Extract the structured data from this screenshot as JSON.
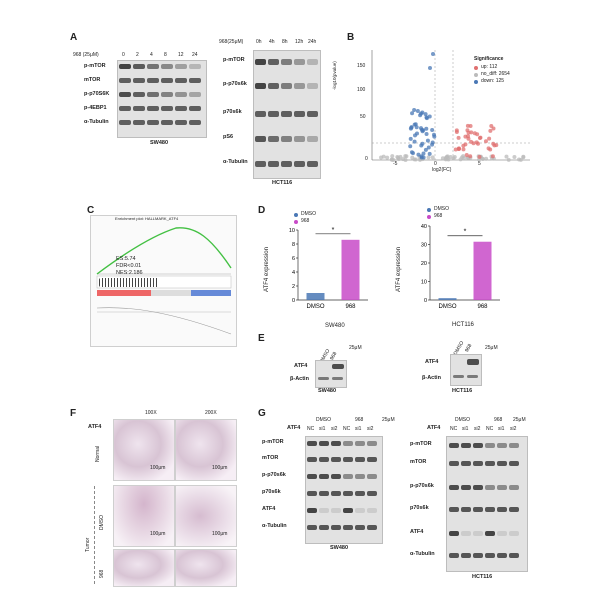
{
  "panels": {
    "A": "A",
    "B": "B",
    "C": "C",
    "D": "D",
    "E": "E",
    "F": "F",
    "G": "G"
  },
  "panelA": {
    "sw_treatment": "968 (25μM)",
    "sw_times": [
      "0",
      "2",
      "4",
      "8",
      "12",
      "24"
    ],
    "sw_rows": [
      "p-mTOR",
      "mTOR",
      "p-p70S6K",
      "p-4EBP1",
      "α-Tubulin"
    ],
    "sw_cell": "SW480",
    "hct_treatment": "968(25μM)",
    "hct_times": [
      "0h",
      "4h",
      "8h",
      "12h",
      "24h"
    ],
    "hct_rows": [
      "p-mTOR",
      "p-p70s6k",
      "p70s6k",
      "pS6",
      "α-Tubulin"
    ],
    "hct_cell": "HCT116"
  },
  "panelB": {
    "title": "Significance",
    "legend": [
      "up: 112",
      "no_diff: 2654",
      "down: 125"
    ],
    "colors": [
      "#e07070",
      "#bbbbbb",
      "#4a78b5"
    ],
    "xlabel": "log2(FC)",
    "ylabel": "-log10(pvalue)",
    "yticks": [
      "150",
      "100",
      "50",
      "0"
    ],
    "xticks": [
      "-5",
      "0",
      "5"
    ]
  },
  "panelC": {
    "title": "Enrichment plot: HALLMARK_ATF4",
    "es": "ES:5.74",
    "fdr": "FDR<0.01",
    "nes": "NES:2.186"
  },
  "panelD": {
    "legend": [
      "DMSO",
      "968"
    ],
    "ylabel": "ATF4 expression",
    "chart1": {
      "cell": "SW480",
      "categories": [
        "DMSO",
        "968"
      ],
      "yticks": [
        "10",
        "8",
        "6",
        "4",
        "2",
        "0"
      ],
      "sig": "*"
    },
    "chart2": {
      "cell": "HCT116",
      "categories": [
        "DMSO",
        "968"
      ],
      "yticks": [
        "40",
        "30",
        "20",
        "10",
        "0"
      ],
      "sig": "*"
    }
  },
  "panelE": {
    "row1": "ATF4",
    "row2": "β-Actin",
    "conc": "25μM",
    "lanes": [
      "DMSO",
      "968"
    ],
    "cell1": "SW480",
    "cell2": "HCT116"
  },
  "panelF": {
    "row_label": "ATF4",
    "mag1": "100X",
    "mag2": "200X",
    "normal": "Normal",
    "tumor": "Tumor",
    "dmso": "DMSO",
    "drug": "968",
    "scale": "100μm"
  },
  "panelG": {
    "conc": "25μM",
    "atf4": "ATF4",
    "groups": [
      "DMSO",
      "968"
    ],
    "sirna": [
      "NC",
      "si1",
      "si2",
      "NC",
      "si1",
      "si2"
    ],
    "rows_sw": [
      "p-mTOR",
      "mTOR",
      "p-p70s6k",
      "p70s6k",
      "ATF4",
      "α-Tubulin"
    ],
    "rows_hct": [
      "p-mTOR",
      "mTOR",
      "p-p70s6k",
      "p70s6k",
      "ATF4",
      "α-Tubulin"
    ],
    "cell1": "SW480",
    "cell2": "HCT116"
  },
  "chart_data": [
    {
      "type": "bar",
      "title": "",
      "ylabel": "ATF4 expression",
      "xlabel": "SW480",
      "categories": [
        "DMSO",
        "968"
      ],
      "values": [
        1.0,
        8.6
      ],
      "ylim": [
        0,
        10
      ],
      "colors": [
        "#4a78b5",
        "#c84bc8"
      ]
    },
    {
      "type": "bar",
      "title": "",
      "ylabel": "ATF4 expression",
      "xlabel": "HCT116",
      "categories": [
        "DMSO",
        "968"
      ],
      "values": [
        1.0,
        31.5
      ],
      "ylim": [
        0,
        40
      ],
      "colors": [
        "#4a78b5",
        "#c84bc8"
      ]
    }
  ]
}
